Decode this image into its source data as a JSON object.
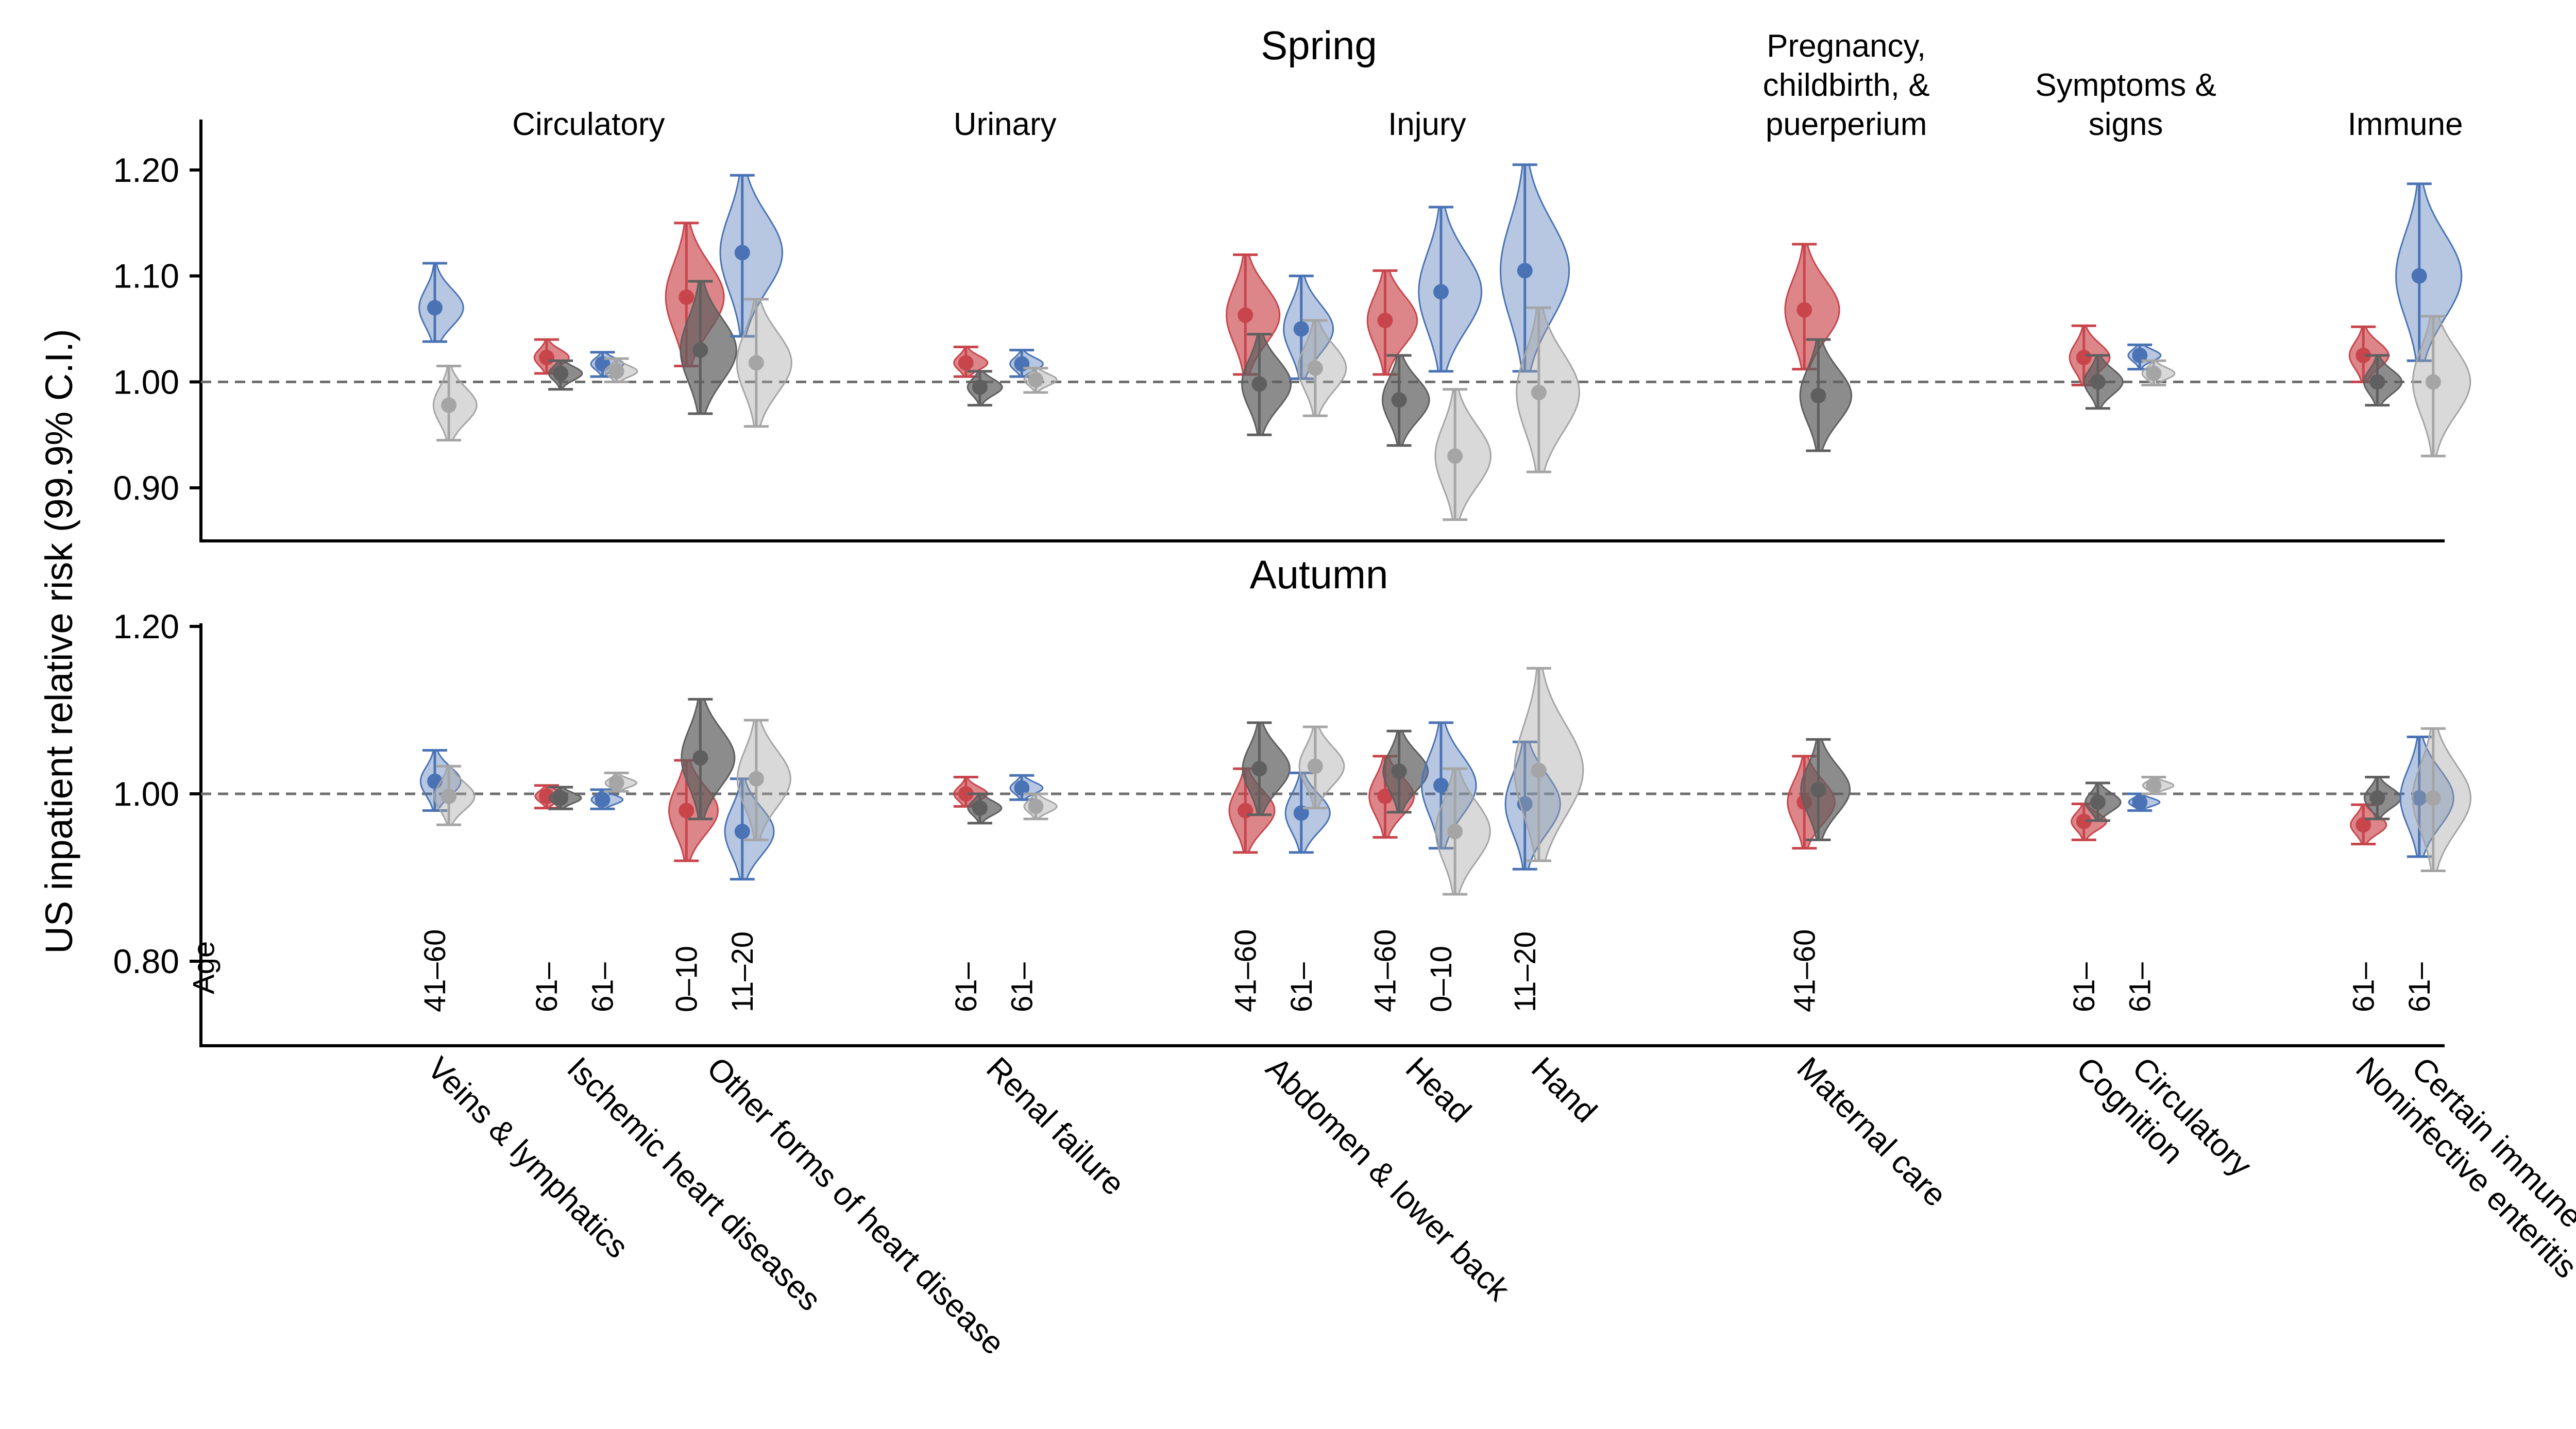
{
  "ylabel": "US inpatient relative risk (99.9% C.I.)",
  "age_header": "Age",
  "colors": {
    "red": "#c9454c",
    "blue": "#4a73b5",
    "dark": "#5f5f5f",
    "light": "#a5a5a5"
  },
  "chart_data": [
    {
      "type": "violin",
      "title": "Spring",
      "ylim": [
        0.85,
        1.25
      ],
      "yticks": [
        1.2,
        1.1,
        1.0,
        0.9
      ],
      "yticklabels": [
        "1.20",
        "1.10",
        "1.00",
        "0.90"
      ],
      "reference_line": 1.0,
      "groups": [
        {
          "label": "Circulatory",
          "center": 4.75
        },
        {
          "label": "Urinary",
          "center": 12.2
        },
        {
          "label": "Injury",
          "center": 19.75
        },
        {
          "label": "Pregnancy,\nchildbirth, &\npuerperium",
          "center": 27.25
        },
        {
          "label": "Symptoms &\nsigns",
          "center": 32.25
        },
        {
          "label": "Immune",
          "center": 37.25
        }
      ],
      "series": [
        {
          "pos": 2.0,
          "color": "blue",
          "est": 1.07,
          "lo": 1.038,
          "hi": 1.112
        },
        {
          "pos": 2.25,
          "color": "light",
          "est": 0.978,
          "lo": 0.945,
          "hi": 1.015
        },
        {
          "pos": 4.0,
          "color": "red",
          "est": 1.023,
          "lo": 1.008,
          "hi": 1.04
        },
        {
          "pos": 4.25,
          "color": "dark",
          "est": 1.008,
          "lo": 0.993,
          "hi": 1.02
        },
        {
          "pos": 5.0,
          "color": "blue",
          "est": 1.017,
          "lo": 1.005,
          "hi": 1.028
        },
        {
          "pos": 5.25,
          "color": "light",
          "est": 1.01,
          "lo": 1.0,
          "hi": 1.022
        },
        {
          "pos": 6.5,
          "color": "red",
          "est": 1.08,
          "lo": 1.015,
          "hi": 1.15
        },
        {
          "pos": 6.75,
          "color": "dark",
          "est": 1.03,
          "lo": 0.97,
          "hi": 1.095
        },
        {
          "pos": 7.5,
          "color": "blue",
          "est": 1.122,
          "lo": 1.043,
          "hi": 1.195
        },
        {
          "pos": 7.75,
          "color": "light",
          "est": 1.018,
          "lo": 0.958,
          "hi": 1.078
        },
        {
          "pos": 11.5,
          "color": "red",
          "est": 1.018,
          "lo": 1.005,
          "hi": 1.033
        },
        {
          "pos": 11.75,
          "color": "dark",
          "est": 0.995,
          "lo": 0.978,
          "hi": 1.01
        },
        {
          "pos": 12.5,
          "color": "blue",
          "est": 1.017,
          "lo": 1.005,
          "hi": 1.03
        },
        {
          "pos": 12.75,
          "color": "light",
          "est": 1.002,
          "lo": 0.99,
          "hi": 1.013
        },
        {
          "pos": 16.5,
          "color": "red",
          "est": 1.063,
          "lo": 1.007,
          "hi": 1.12
        },
        {
          "pos": 16.75,
          "color": "dark",
          "est": 0.998,
          "lo": 0.95,
          "hi": 1.045
        },
        {
          "pos": 17.5,
          "color": "blue",
          "est": 1.05,
          "lo": 1.003,
          "hi": 1.1
        },
        {
          "pos": 17.75,
          "color": "light",
          "est": 1.013,
          "lo": 0.968,
          "hi": 1.058
        },
        {
          "pos": 19.0,
          "color": "red",
          "est": 1.058,
          "lo": 1.007,
          "hi": 1.105
        },
        {
          "pos": 19.25,
          "color": "dark",
          "est": 0.983,
          "lo": 0.94,
          "hi": 1.025
        },
        {
          "pos": 20.0,
          "color": "blue",
          "est": 1.085,
          "lo": 1.01,
          "hi": 1.165
        },
        {
          "pos": 20.25,
          "color": "light",
          "est": 0.93,
          "lo": 0.87,
          "hi": 0.993
        },
        {
          "pos": 21.5,
          "color": "blue",
          "est": 1.105,
          "lo": 1.01,
          "hi": 1.205
        },
        {
          "pos": 21.75,
          "color": "light",
          "est": 0.99,
          "lo": 0.915,
          "hi": 1.07
        },
        {
          "pos": 26.5,
          "color": "red",
          "est": 1.068,
          "lo": 1.012,
          "hi": 1.13
        },
        {
          "pos": 26.75,
          "color": "dark",
          "est": 0.987,
          "lo": 0.935,
          "hi": 1.04
        },
        {
          "pos": 31.5,
          "color": "red",
          "est": 1.023,
          "lo": 0.997,
          "hi": 1.053
        },
        {
          "pos": 31.75,
          "color": "dark",
          "est": 1.0,
          "lo": 0.975,
          "hi": 1.025
        },
        {
          "pos": 32.5,
          "color": "blue",
          "est": 1.025,
          "lo": 1.012,
          "hi": 1.035
        },
        {
          "pos": 32.75,
          "color": "light",
          "est": 1.008,
          "lo": 0.997,
          "hi": 1.02
        },
        {
          "pos": 36.5,
          "color": "red",
          "est": 1.025,
          "lo": 1.0,
          "hi": 1.052
        },
        {
          "pos": 36.75,
          "color": "dark",
          "est": 1.0,
          "lo": 0.978,
          "hi": 1.025
        },
        {
          "pos": 37.5,
          "color": "blue",
          "est": 1.1,
          "lo": 1.02,
          "hi": 1.187
        },
        {
          "pos": 37.75,
          "color": "light",
          "est": 1.0,
          "lo": 0.93,
          "hi": 1.062
        }
      ]
    },
    {
      "type": "violin",
      "title": "Autumn",
      "ylim": [
        0.7,
        1.25
      ],
      "yticks": [
        1.2,
        1.0,
        0.8
      ],
      "yticklabels": [
        "1.20",
        "1.00",
        "0.80"
      ],
      "reference_line": 1.0,
      "series": [
        {
          "pos": 2.0,
          "color": "blue",
          "est": 1.015,
          "lo": 0.98,
          "hi": 1.052
        },
        {
          "pos": 2.25,
          "color": "light",
          "est": 0.997,
          "lo": 0.963,
          "hi": 1.033
        },
        {
          "pos": 4.0,
          "color": "red",
          "est": 0.997,
          "lo": 0.983,
          "hi": 1.01
        },
        {
          "pos": 4.25,
          "color": "dark",
          "est": 0.995,
          "lo": 0.982,
          "hi": 1.008
        },
        {
          "pos": 5.0,
          "color": "blue",
          "est": 0.993,
          "lo": 0.982,
          "hi": 1.005
        },
        {
          "pos": 5.25,
          "color": "light",
          "est": 1.013,
          "lo": 1.003,
          "hi": 1.025
        },
        {
          "pos": 6.5,
          "color": "red",
          "est": 0.98,
          "lo": 0.92,
          "hi": 1.04
        },
        {
          "pos": 6.75,
          "color": "dark",
          "est": 1.043,
          "lo": 0.97,
          "hi": 1.113
        },
        {
          "pos": 7.5,
          "color": "blue",
          "est": 0.955,
          "lo": 0.898,
          "hi": 1.018
        },
        {
          "pos": 7.75,
          "color": "light",
          "est": 1.018,
          "lo": 0.945,
          "hi": 1.088
        },
        {
          "pos": 11.5,
          "color": "red",
          "est": 1.0,
          "lo": 0.985,
          "hi": 1.02
        },
        {
          "pos": 11.75,
          "color": "dark",
          "est": 0.983,
          "lo": 0.965,
          "hi": 1.0
        },
        {
          "pos": 12.5,
          "color": "blue",
          "est": 1.007,
          "lo": 0.993,
          "hi": 1.022
        },
        {
          "pos": 12.75,
          "color": "light",
          "est": 0.985,
          "lo": 0.97,
          "hi": 1.0
        },
        {
          "pos": 16.5,
          "color": "red",
          "est": 0.98,
          "lo": 0.93,
          "hi": 1.03
        },
        {
          "pos": 16.75,
          "color": "dark",
          "est": 1.03,
          "lo": 0.975,
          "hi": 1.085
        },
        {
          "pos": 17.5,
          "color": "blue",
          "est": 0.977,
          "lo": 0.93,
          "hi": 1.025
        },
        {
          "pos": 17.75,
          "color": "light",
          "est": 1.033,
          "lo": 0.983,
          "hi": 1.08
        },
        {
          "pos": 19.0,
          "color": "red",
          "est": 0.997,
          "lo": 0.948,
          "hi": 1.045
        },
        {
          "pos": 19.25,
          "color": "dark",
          "est": 1.027,
          "lo": 0.978,
          "hi": 1.075
        },
        {
          "pos": 20.0,
          "color": "blue",
          "est": 1.01,
          "lo": 0.935,
          "hi": 1.085
        },
        {
          "pos": 20.25,
          "color": "light",
          "est": 0.955,
          "lo": 0.88,
          "hi": 1.03
        },
        {
          "pos": 21.5,
          "color": "blue",
          "est": 0.988,
          "lo": 0.91,
          "hi": 1.062
        },
        {
          "pos": 21.75,
          "color": "light",
          "est": 1.028,
          "lo": 0.92,
          "hi": 1.15
        },
        {
          "pos": 26.5,
          "color": "red",
          "est": 0.99,
          "lo": 0.935,
          "hi": 1.045
        },
        {
          "pos": 26.75,
          "color": "dark",
          "est": 1.005,
          "lo": 0.945,
          "hi": 1.065
        },
        {
          "pos": 31.5,
          "color": "red",
          "est": 0.967,
          "lo": 0.945,
          "hi": 0.988
        },
        {
          "pos": 31.75,
          "color": "dark",
          "est": 0.99,
          "lo": 0.968,
          "hi": 1.013
        },
        {
          "pos": 32.5,
          "color": "blue",
          "est": 0.99,
          "lo": 0.98,
          "hi": 1.0
        },
        {
          "pos": 32.75,
          "color": "light",
          "est": 1.01,
          "lo": 1.0,
          "hi": 1.02
        },
        {
          "pos": 36.5,
          "color": "red",
          "est": 0.963,
          "lo": 0.94,
          "hi": 0.987
        },
        {
          "pos": 36.75,
          "color": "dark",
          "est": 0.995,
          "lo": 0.97,
          "hi": 1.02
        },
        {
          "pos": 37.5,
          "color": "blue",
          "est": 0.995,
          "lo": 0.925,
          "hi": 1.068
        },
        {
          "pos": 37.75,
          "color": "light",
          "est": 0.995,
          "lo": 0.908,
          "hi": 1.078
        }
      ]
    }
  ],
  "ages": [
    {
      "pos": 2.0,
      "label": "41–60"
    },
    {
      "pos": 4.0,
      "label": "61–"
    },
    {
      "pos": 5.0,
      "label": "61–"
    },
    {
      "pos": 6.5,
      "label": "0–10"
    },
    {
      "pos": 7.5,
      "label": "11–20"
    },
    {
      "pos": 11.5,
      "label": "61–"
    },
    {
      "pos": 12.5,
      "label": "61–"
    },
    {
      "pos": 16.5,
      "label": "41–60"
    },
    {
      "pos": 17.5,
      "label": "61–"
    },
    {
      "pos": 19.0,
      "label": "41–60"
    },
    {
      "pos": 20.0,
      "label": "0–10"
    },
    {
      "pos": 21.5,
      "label": "11–20"
    },
    {
      "pos": 26.5,
      "label": "41–60"
    },
    {
      "pos": 31.5,
      "label": "61–"
    },
    {
      "pos": 32.5,
      "label": "61–"
    },
    {
      "pos": 36.5,
      "label": "61–"
    },
    {
      "pos": 37.5,
      "label": "61–"
    }
  ],
  "categories": [
    {
      "pos": 2.0,
      "label": "Veins & lymphatics"
    },
    {
      "pos": 4.5,
      "label": "Ischemic heart diseases"
    },
    {
      "pos": 7.0,
      "label": "Other forms of heart disease"
    },
    {
      "pos": 12.0,
      "label": "Renal failure"
    },
    {
      "pos": 17.0,
      "label": "Abdomen & lower back"
    },
    {
      "pos": 19.5,
      "label": "Head"
    },
    {
      "pos": 21.75,
      "label": "Hand"
    },
    {
      "pos": 26.5,
      "label": "Maternal care"
    },
    {
      "pos": 31.5,
      "label": "Cognition"
    },
    {
      "pos": 32.5,
      "label": "Circulatory"
    },
    {
      "pos": 36.5,
      "label": "Noninfective enteritis"
    },
    {
      "pos": 37.5,
      "label": "Certain immune disorders"
    }
  ]
}
